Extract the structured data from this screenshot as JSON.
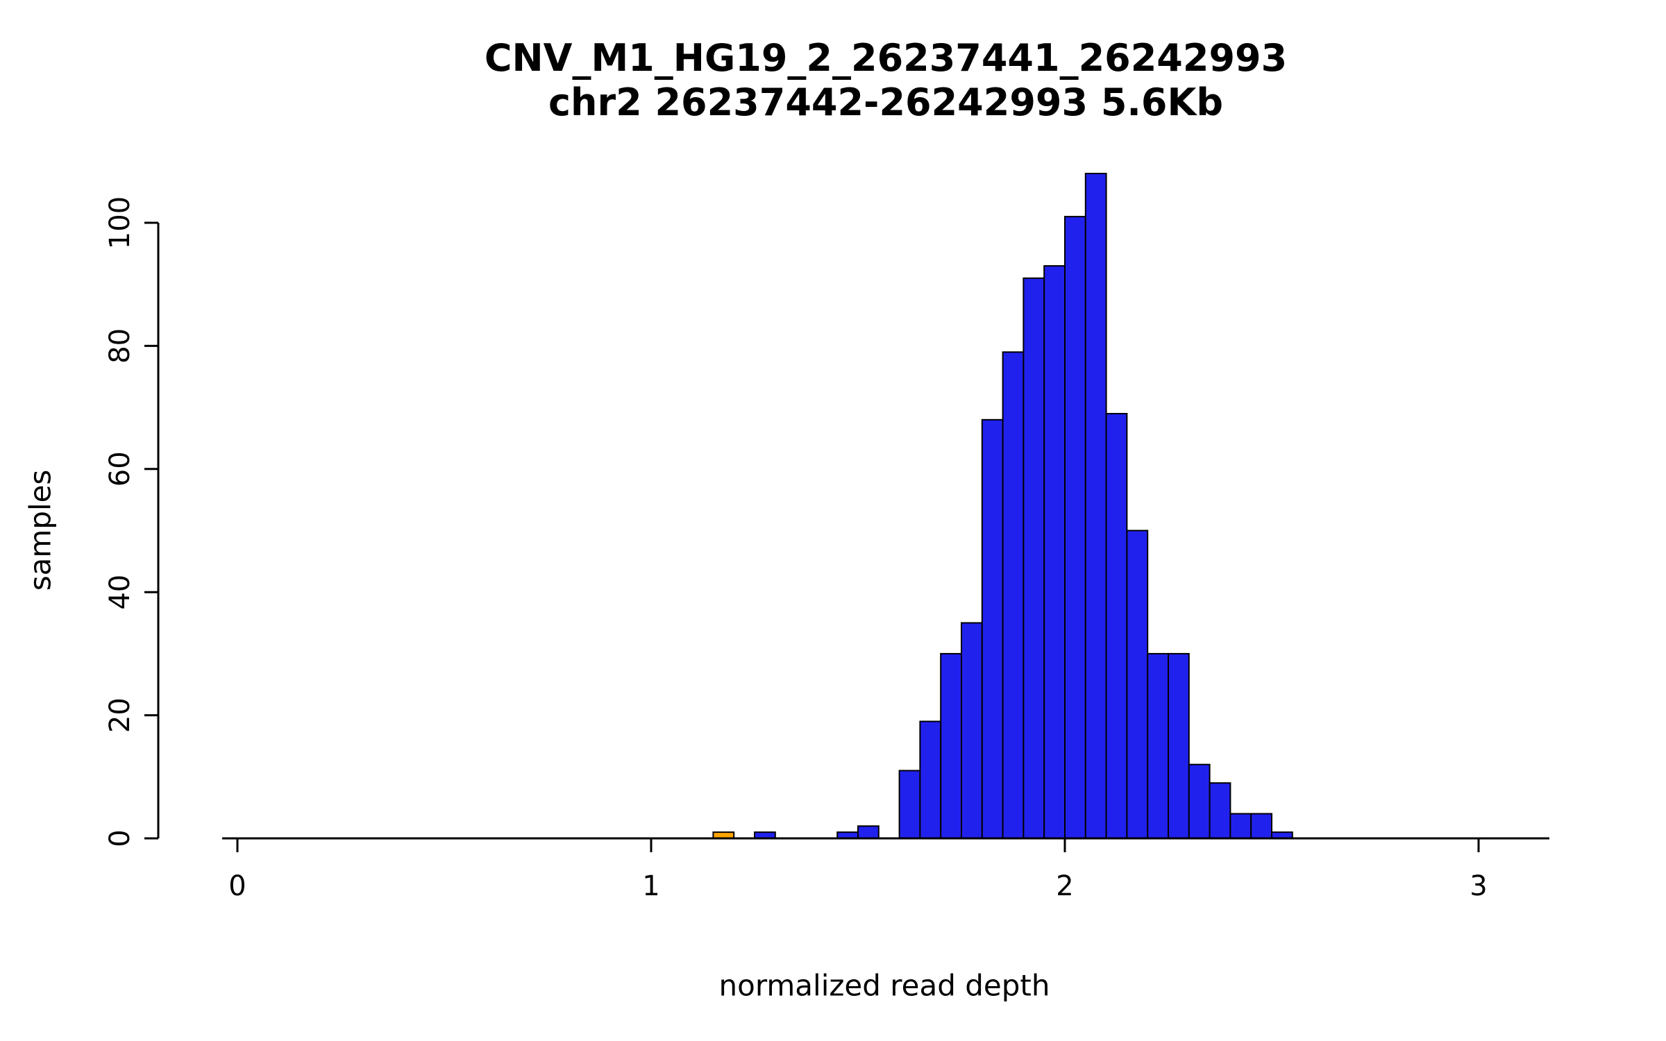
{
  "chart_data": {
    "type": "bar",
    "subtype": "histogram",
    "title": "CNV_M1_HG19_2_26237441_26242993",
    "subtitle": "chr2 26237442-26242993 5.6Kb",
    "xlabel": "normalized read depth",
    "ylabel": "samples",
    "xlim": [
      0,
      3.2
    ],
    "ylim": [
      0,
      110
    ],
    "x_ticks": [
      0,
      1,
      2,
      3
    ],
    "y_ticks": [
      0,
      20,
      40,
      60,
      80,
      100
    ],
    "grid": false,
    "legend": false,
    "bin_width": 0.05,
    "bar_fill_default": "#2121EE",
    "bar_stroke": "#000000",
    "outlier_color": "#FFA500",
    "bars": [
      {
        "bin_start": 1.15,
        "count": 1,
        "color": "#FFA500"
      },
      {
        "bin_start": 1.25,
        "count": 1
      },
      {
        "bin_start": 1.45,
        "count": 1
      },
      {
        "bin_start": 1.5,
        "count": 2
      },
      {
        "bin_start": 1.6,
        "count": 11
      },
      {
        "bin_start": 1.65,
        "count": 19
      },
      {
        "bin_start": 1.7,
        "count": 30
      },
      {
        "bin_start": 1.75,
        "count": 35
      },
      {
        "bin_start": 1.8,
        "count": 68
      },
      {
        "bin_start": 1.85,
        "count": 79
      },
      {
        "bin_start": 1.9,
        "count": 91
      },
      {
        "bin_start": 1.95,
        "count": 93
      },
      {
        "bin_start": 2.0,
        "count": 101
      },
      {
        "bin_start": 2.05,
        "count": 108
      },
      {
        "bin_start": 2.1,
        "count": 69
      },
      {
        "bin_start": 2.15,
        "count": 50
      },
      {
        "bin_start": 2.2,
        "count": 30
      },
      {
        "bin_start": 2.25,
        "count": 30
      },
      {
        "bin_start": 2.3,
        "count": 12
      },
      {
        "bin_start": 2.35,
        "count": 9
      },
      {
        "bin_start": 2.4,
        "count": 4
      },
      {
        "bin_start": 2.45,
        "count": 4
      },
      {
        "bin_start": 2.5,
        "count": 1
      }
    ]
  }
}
